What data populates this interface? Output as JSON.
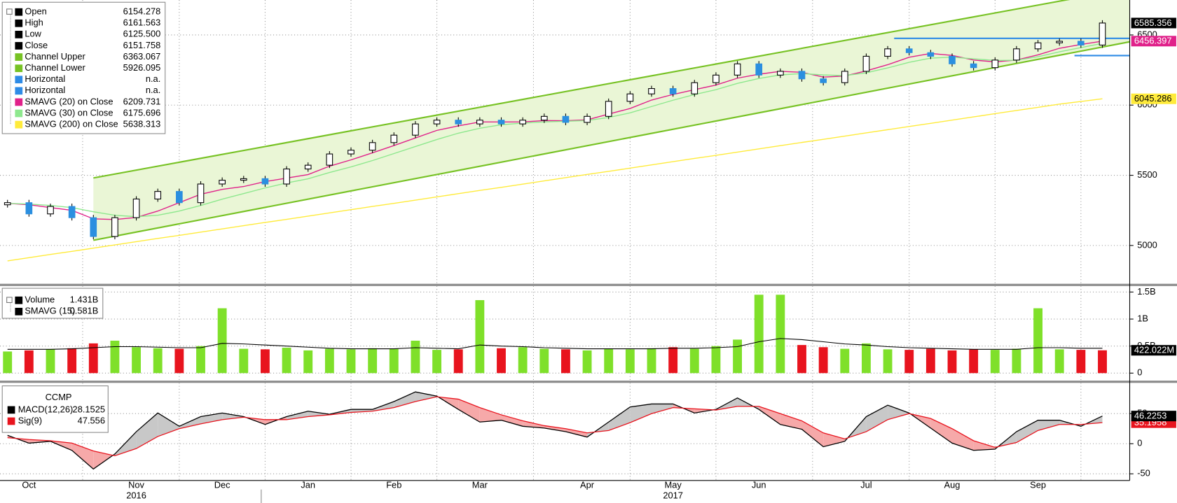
{
  "chart_data": [
    {
      "type": "candlestick",
      "ylim": [
        4727,
        6749
      ],
      "yticks": [
        5000,
        5500,
        6000,
        6500
      ],
      "grid": true,
      "channel_fill": "#eaf6d6",
      "candle_colors": {
        "up": "#ffffff",
        "down": "#2b8fe0",
        "edge": "#000000"
      },
      "open": {
        "name": "Open",
        "legend_value": "6154.278",
        "color": "#000000",
        "values": [
          5290,
          5305,
          5225,
          5278,
          5198,
          5064,
          5198,
          5331,
          5385,
          5305,
          5438,
          5465,
          5476,
          5438,
          5545,
          5572,
          5652,
          5679,
          5733,
          5786,
          5866,
          5893,
          5866,
          5893,
          5866,
          5893,
          5920,
          5877,
          5920,
          6027,
          6080,
          6118,
          6080,
          6160,
          6214,
          6294,
          6214,
          6241,
          6187,
          6160,
          6241,
          6348,
          6401,
          6374,
          6348,
          6294,
          6267,
          6321,
          6401,
          6444,
          6455,
          6428
        ]
      },
      "high": {
        "name": "High",
        "legend_value": "6161.563",
        "color": "#000000",
        "values": [
          5325,
          5325,
          5298,
          5298,
          5218,
          5218,
          5351,
          5405,
          5405,
          5458,
          5485,
          5496,
          5496,
          5565,
          5592,
          5672,
          5699,
          5753,
          5806,
          5886,
          5913,
          5913,
          5913,
          5913,
          5913,
          5940,
          5940,
          5940,
          6047,
          6100,
          6138,
          6138,
          6180,
          6234,
          6314,
          6314,
          6261,
          6261,
          6207,
          6261,
          6368,
          6421,
          6421,
          6394,
          6368,
          6314,
          6341,
          6421,
          6464,
          6475,
          6475,
          6605
        ]
      },
      "low": {
        "name": "Low",
        "legend_value": "6125.500",
        "color": "#000000",
        "values": [
          5270,
          5205,
          5205,
          5178,
          5044,
          5044,
          5178,
          5311,
          5285,
          5285,
          5418,
          5445,
          5418,
          5418,
          5525,
          5552,
          5632,
          5659,
          5713,
          5766,
          5846,
          5846,
          5846,
          5846,
          5846,
          5873,
          5857,
          5857,
          5900,
          6007,
          6060,
          6060,
          6060,
          6140,
          6194,
          6194,
          6194,
          6167,
          6140,
          6140,
          6221,
          6328,
          6354,
          6328,
          6274,
          6247,
          6247,
          6301,
          6381,
          6424,
          6408,
          6408
        ]
      },
      "close": {
        "name": "Close",
        "legend_value": "6151.758",
        "color": "#000000",
        "end_label": "6585.356",
        "values": [
          5305,
          5225,
          5278,
          5198,
          5064,
          5198,
          5331,
          5385,
          5305,
          5438,
          5465,
          5476,
          5438,
          5545,
          5572,
          5652,
          5679,
          5733,
          5786,
          5866,
          5893,
          5866,
          5893,
          5866,
          5893,
          5920,
          5877,
          5920,
          6027,
          6080,
          6118,
          6080,
          6160,
          6214,
          6294,
          6214,
          6241,
          6187,
          6160,
          6241,
          6348,
          6401,
          6374,
          6348,
          6294,
          6267,
          6321,
          6401,
          6444,
          6455,
          6428,
          6585
        ]
      },
      "series": [
        {
          "name": "Channel Upper",
          "legend_value": "6363.067",
          "color": "#77c224",
          "x": [
            4,
            52.3
          ],
          "values": [
            5481,
            6833
          ]
        },
        {
          "name": "Channel Lower",
          "legend_value": "5926.095",
          "color": "#77c224",
          "x": [
            4,
            52.3
          ],
          "values": [
            5037,
            6452
          ]
        },
        {
          "name": "Horizontal",
          "legend_value": "n.a.",
          "color": "#2e8be6",
          "x": [
            41.3,
            52.3
          ],
          "values": [
            6476,
            6476
          ]
        },
        {
          "name": "Horizontal",
          "legend_value": "n.a.",
          "color": "#2e8be6",
          "x": [
            49.7,
            52.3
          ],
          "values": [
            6353,
            6353
          ]
        },
        {
          "name": "SMAVG (20) on Close",
          "legend_value": "6209.731",
          "color": "#e0218a",
          "end_label": "6456.397",
          "values": [
            5300,
            5290,
            5270,
            5250,
            5190,
            5185,
            5200,
            5245,
            5305,
            5365,
            5400,
            5420,
            5455,
            5480,
            5505,
            5565,
            5610,
            5660,
            5712,
            5766,
            5820,
            5852,
            5880,
            5880,
            5880,
            5890,
            5889,
            5895,
            5936,
            5976,
            6036,
            6076,
            6110,
            6143,
            6192,
            6220,
            6241,
            6234,
            6200,
            6207,
            6244,
            6288,
            6341,
            6368,
            6354,
            6321,
            6308,
            6321,
            6358,
            6405,
            6432,
            6456
          ]
        },
        {
          "name": "SMAVG (30) on Close",
          "legend_value": "6175.696",
          "color": "#8ee88e",
          "values": [
            5300,
            5295,
            5285,
            5270,
            5240,
            5215,
            5205,
            5215,
            5245,
            5285,
            5330,
            5370,
            5410,
            5445,
            5475,
            5520,
            5560,
            5605,
            5655,
            5705,
            5755,
            5800,
            5835,
            5860,
            5872,
            5880,
            5885,
            5890,
            5912,
            5945,
            5990,
            6035,
            6075,
            6110,
            6155,
            6190,
            6215,
            6225,
            6215,
            6210,
            6230,
            6265,
            6305,
            6335,
            6342,
            6330,
            6318,
            6320,
            6345,
            6380,
            6410,
            6440
          ]
        },
        {
          "name": "SMAVG (200) on Close",
          "legend_value": "5638.313",
          "color": "#ffeb3b",
          "end_label": "6045.286",
          "values": [
            4890,
            4913,
            4936,
            4958,
            4981,
            5004,
            5027,
            5050,
            5072,
            5095,
            5118,
            5141,
            5164,
            5186,
            5209,
            5232,
            5255,
            5278,
            5300,
            5323,
            5346,
            5369,
            5392,
            5414,
            5437,
            5460,
            5483,
            5506,
            5528,
            5551,
            5574,
            5597,
            5620,
            5642,
            5665,
            5688,
            5711,
            5734,
            5756,
            5779,
            5802,
            5825,
            5848,
            5870,
            5893,
            5916,
            5939,
            5962,
            5984,
            6007,
            6026,
            6045
          ]
        }
      ]
    },
    {
      "type": "bar",
      "ylim": [
        -0.139,
        1.611
      ],
      "yticks": [
        0,
        {
          "value": 0.5,
          "label": "0.5B"
        },
        {
          "value": 1,
          "label": "1B"
        },
        {
          "value": 1.5,
          "label": "1.5B"
        }
      ],
      "grid": true,
      "series": [
        {
          "name": "Volume",
          "legend_value": "1.431B",
          "color": "#000000",
          "end_label": "422.022M",
          "values": [
            0.4,
            0.42,
            0.44,
            0.46,
            0.55,
            0.6,
            0.48,
            0.46,
            0.45,
            0.5,
            1.2,
            0.45,
            0.44,
            0.47,
            0.42,
            0.45,
            0.44,
            0.46,
            0.45,
            0.6,
            0.43,
            0.44,
            1.35,
            0.46,
            0.48,
            0.45,
            0.44,
            0.42,
            0.45,
            0.44,
            0.46,
            0.48,
            0.45,
            0.5,
            0.62,
            1.45,
            1.45,
            0.52,
            0.48,
            0.45,
            0.55,
            0.44,
            0.43,
            0.45,
            0.42,
            0.44,
            0.43,
            0.45,
            1.2,
            0.44,
            0.43,
            0.422
          ],
          "colors": [
            "#7fe02a",
            "#e8141e",
            "#7fe02a",
            "#e8141e",
            "#e8141e",
            "#7fe02a",
            "#7fe02a",
            "#7fe02a",
            "#e8141e",
            "#7fe02a",
            "#7fe02a",
            "#7fe02a",
            "#e8141e",
            "#7fe02a",
            "#7fe02a",
            "#7fe02a",
            "#7fe02a",
            "#7fe02a",
            "#7fe02a",
            "#7fe02a",
            "#7fe02a",
            "#e8141e",
            "#7fe02a",
            "#e8141e",
            "#7fe02a",
            "#7fe02a",
            "#e8141e",
            "#7fe02a",
            "#7fe02a",
            "#7fe02a",
            "#7fe02a",
            "#e8141e",
            "#7fe02a",
            "#7fe02a",
            "#7fe02a",
            "#7fe02a",
            "#7fe02a",
            "#e8141e",
            "#e8141e",
            "#7fe02a",
            "#7fe02a",
            "#7fe02a",
            "#e8141e",
            "#e8141e",
            "#e8141e",
            "#e8141e",
            "#7fe02a",
            "#7fe02a",
            "#7fe02a",
            "#7fe02a",
            "#e8141e",
            "#e8141e"
          ]
        },
        {
          "name": "SMAVG (15)",
          "legend_value": "0.581B",
          "color": "#000000",
          "values": [
            0.44,
            0.44,
            0.44,
            0.45,
            0.47,
            0.49,
            0.49,
            0.48,
            0.47,
            0.47,
            0.55,
            0.54,
            0.52,
            0.5,
            0.48,
            0.46,
            0.45,
            0.45,
            0.45,
            0.47,
            0.46,
            0.45,
            0.52,
            0.5,
            0.49,
            0.47,
            0.46,
            0.45,
            0.45,
            0.45,
            0.45,
            0.46,
            0.46,
            0.47,
            0.49,
            0.58,
            0.64,
            0.62,
            0.58,
            0.54,
            0.52,
            0.49,
            0.47,
            0.46,
            0.45,
            0.44,
            0.44,
            0.44,
            0.47,
            0.47,
            0.46,
            0.46
          ]
        }
      ]
    },
    {
      "type": "macd",
      "title": "CCMP",
      "ylim": [
        -61,
        101
      ],
      "yticks": [
        -50,
        0,
        50
      ],
      "grid": true,
      "fill_above": "#c8c8c8",
      "fill_below": "#f6a9a9",
      "categories": [
        null,
        "Oct",
        null,
        null,
        null,
        null,
        "Nov",
        null,
        null,
        null,
        "Dec",
        null,
        null,
        null,
        "Jan",
        null,
        null,
        null,
        "Feb",
        null,
        null,
        null,
        "Mar",
        null,
        null,
        null,
        null,
        "Apr",
        null,
        null,
        null,
        "May",
        null,
        null,
        null,
        "Jun",
        null,
        null,
        null,
        null,
        "Jul",
        null,
        null,
        null,
        "Aug",
        null,
        null,
        null,
        "Sep",
        null,
        null,
        null
      ],
      "year_labels": [
        "2016",
        "2017"
      ],
      "series": [
        {
          "name": "MACD(12,26)",
          "legend_value": "28.1525",
          "color": "#000000",
          "end_label": "46.2253",
          "values": [
            14,
            1,
            4,
            -11,
            -42,
            -17,
            20,
            51,
            29,
            45,
            51,
            45,
            32,
            45,
            54,
            49,
            57,
            57,
            70,
            86,
            79,
            57,
            36,
            39,
            29,
            26,
            20,
            11,
            36,
            61,
            66,
            66,
            51,
            57,
            76,
            57,
            32,
            24,
            -5,
            4,
            45,
            64,
            51,
            26,
            1,
            -11,
            -9,
            20,
            39,
            39,
            29,
            46
          ]
        },
        {
          "name": "Sig(9)",
          "legend_value": "47.556",
          "color": "#e8141e",
          "end_label": "35.1958",
          "values": [
            10,
            7,
            5,
            1,
            -12,
            -20,
            -8,
            12,
            25,
            33,
            40,
            44,
            40,
            40,
            45,
            48,
            52,
            54,
            60,
            70,
            78,
            74,
            60,
            48,
            38,
            30,
            25,
            18,
            22,
            35,
            50,
            60,
            58,
            56,
            62,
            62,
            50,
            38,
            18,
            8,
            20,
            40,
            50,
            42,
            25,
            5,
            -6,
            2,
            22,
            32,
            32,
            35
          ]
        }
      ]
    }
  ]
}
